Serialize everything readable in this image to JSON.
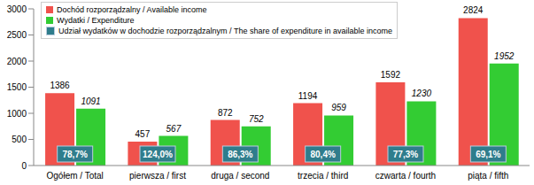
{
  "chart_data": {
    "type": "bar",
    "categories": [
      "Ogółem / Total",
      "pierwsza / first",
      "druga / second",
      "trzecia / third",
      "czwarta / fourth",
      "piąta / fifth"
    ],
    "series": [
      {
        "name": "Dochód rozporządzalny / Available income",
        "color": "#f0524c",
        "type": "bar",
        "values": [
          1386,
          457,
          872,
          1194,
          1592,
          2824
        ]
      },
      {
        "name": "Wydatki / Expenditure",
        "color": "#33cc33",
        "type": "bar",
        "values": [
          1091,
          567,
          752,
          959,
          1230,
          1952
        ]
      },
      {
        "name": "Udział wydatków w dochodzie rozporządzalnym / The share of expenditure in available income",
        "color": "#2f7d8c",
        "type": "label_box",
        "values": [
          78.7,
          124.0,
          86.3,
          80.4,
          77.3,
          69.1
        ],
        "value_labels": [
          "78,7%",
          "124,0%",
          "86,3%",
          "80,4%",
          "77,3%",
          "69,1%"
        ]
      }
    ],
    "ylim": [
      0,
      3000
    ],
    "yticks": [
      0,
      500,
      1000,
      1500,
      2000,
      2500,
      3000
    ],
    "grid": false,
    "data_labels": true,
    "legend": "top-left"
  }
}
